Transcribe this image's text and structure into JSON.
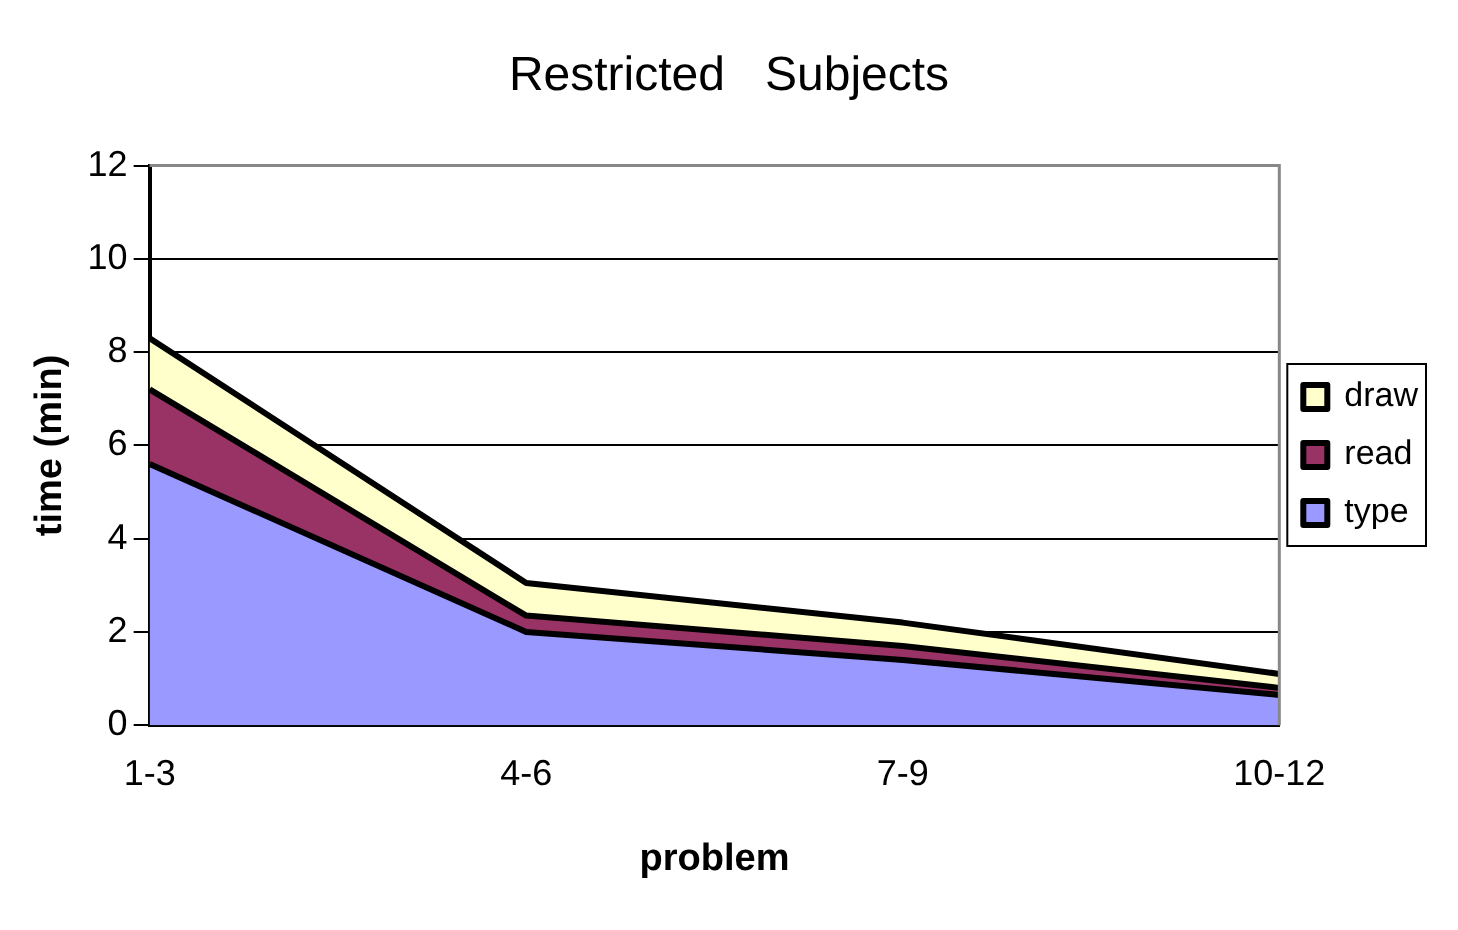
{
  "chart_data": {
    "type": "area",
    "title": "Restricted   Subjects",
    "xlabel": "problem",
    "ylabel": "time (min)",
    "categories": [
      "1-3",
      "4-6",
      "7-9",
      "10-12"
    ],
    "stacked": true,
    "series": [
      {
        "name": "type",
        "color": "#9999ff",
        "values": [
          5.6,
          2.0,
          1.4,
          0.65
        ]
      },
      {
        "name": "read",
        "color": "#993366",
        "values": [
          1.6,
          0.35,
          0.3,
          0.15
        ]
      },
      {
        "name": "draw",
        "color": "#ffffcc",
        "values": [
          1.1,
          0.7,
          0.5,
          0.3
        ]
      }
    ],
    "ylim": [
      0,
      12
    ],
    "yticks": [
      0,
      2,
      4,
      6,
      8,
      10,
      12
    ],
    "grid": "y",
    "legend": "right"
  }
}
